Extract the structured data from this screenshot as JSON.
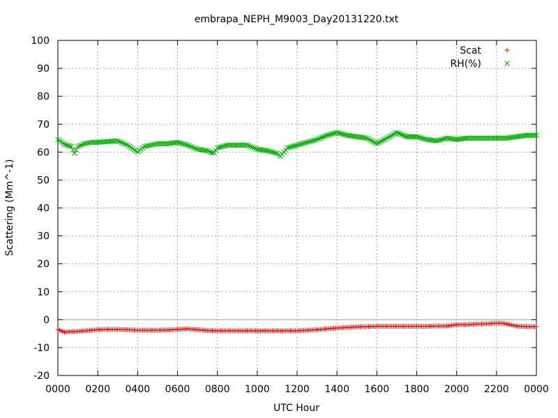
{
  "chart_data": {
    "type": "scatter",
    "title": "embrapa_NEPH_M9003_Day20131220.txt",
    "xlabel": "UTC Hour",
    "ylabel": "Scattering (Mm^-1)",
    "xlim": [
      0,
      24
    ],
    "ylim": [
      -20,
      100
    ],
    "grid": true,
    "legend_position": "top-right",
    "x_ticks": [
      {
        "value": 0,
        "label": "0000"
      },
      {
        "value": 2,
        "label": "0200"
      },
      {
        "value": 4,
        "label": "0400"
      },
      {
        "value": 6,
        "label": "0600"
      },
      {
        "value": 8,
        "label": "0800"
      },
      {
        "value": 10,
        "label": "1000"
      },
      {
        "value": 12,
        "label": "1200"
      },
      {
        "value": 14,
        "label": "1400"
      },
      {
        "value": 16,
        "label": "1600"
      },
      {
        "value": 18,
        "label": "1800"
      },
      {
        "value": 20,
        "label": "2000"
      },
      {
        "value": 22,
        "label": "2200"
      },
      {
        "value": 24,
        "label": "0000"
      }
    ],
    "y_ticks": [
      -20,
      -10,
      0,
      10,
      20,
      30,
      40,
      50,
      60,
      70,
      80,
      90,
      100
    ],
    "series": [
      {
        "name": "Scat",
        "marker": "plus",
        "color": "#cc0000",
        "x": [
          0,
          0.33,
          0.67,
          1,
          1.33,
          1.67,
          2,
          2.5,
          3,
          3.5,
          4,
          4.5,
          5,
          5.5,
          6,
          6.5,
          7,
          7.5,
          8,
          8.5,
          9,
          9.5,
          10,
          10.5,
          11,
          11.5,
          12,
          12.5,
          13,
          13.5,
          14,
          14.5,
          15,
          15.5,
          16,
          16.5,
          17,
          17.5,
          18,
          18.5,
          19,
          19.5,
          20,
          20.5,
          21,
          21.5,
          22,
          22.33,
          22.67,
          23,
          23.5,
          24
        ],
        "y": [
          -3.5,
          -4.5,
          -4.3,
          -4.2,
          -4.0,
          -3.8,
          -3.6,
          -3.5,
          -3.5,
          -3.6,
          -3.8,
          -3.8,
          -3.8,
          -3.7,
          -3.5,
          -3.3,
          -3.6,
          -3.9,
          -4.0,
          -4.0,
          -4.0,
          -4.0,
          -4.0,
          -4.0,
          -4.0,
          -4.0,
          -4.0,
          -3.8,
          -3.6,
          -3.3,
          -3.0,
          -2.8,
          -2.6,
          -2.5,
          -2.4,
          -2.4,
          -2.4,
          -2.4,
          -2.4,
          -2.4,
          -2.3,
          -2.3,
          -1.8,
          -1.8,
          -1.6,
          -1.5,
          -1.3,
          -1.3,
          -1.8,
          -2.3,
          -2.5,
          -2.5
        ]
      },
      {
        "name": "RH(%)",
        "marker": "x",
        "color": "#00aa00",
        "x": [
          0,
          0.33,
          0.67,
          0.83,
          1,
          1.33,
          1.67,
          2,
          2.5,
          3,
          3.5,
          3.8,
          4,
          4.33,
          4.67,
          5,
          5.5,
          6,
          6.5,
          7,
          7.5,
          7.8,
          8,
          8.5,
          9,
          9.5,
          10,
          10.5,
          11,
          11.17,
          11.5,
          12,
          12.5,
          13,
          13.5,
          14,
          14.5,
          15,
          15.5,
          16,
          16.5,
          17,
          17.5,
          18,
          18.5,
          19,
          19.5,
          20,
          20.5,
          21,
          21.5,
          22,
          22.5,
          23,
          23.5,
          24
        ],
        "y": [
          64.5,
          62.8,
          62.0,
          59.5,
          62.0,
          63.0,
          63.5,
          63.5,
          63.8,
          64.0,
          62.5,
          61.0,
          60.0,
          62.0,
          62.5,
          63.0,
          63.0,
          63.5,
          62.5,
          61.0,
          60.5,
          59.5,
          61.5,
          62.5,
          62.5,
          62.5,
          61.0,
          60.5,
          59.5,
          58.5,
          61.5,
          62.5,
          63.5,
          64.5,
          66.0,
          67.0,
          66.0,
          65.5,
          65.0,
          63.0,
          65.0,
          67.0,
          65.5,
          65.5,
          64.5,
          64.0,
          65.0,
          64.5,
          65.0,
          65.0,
          65.0,
          65.0,
          65.0,
          65.5,
          66.0,
          66.0
        ]
      }
    ]
  }
}
